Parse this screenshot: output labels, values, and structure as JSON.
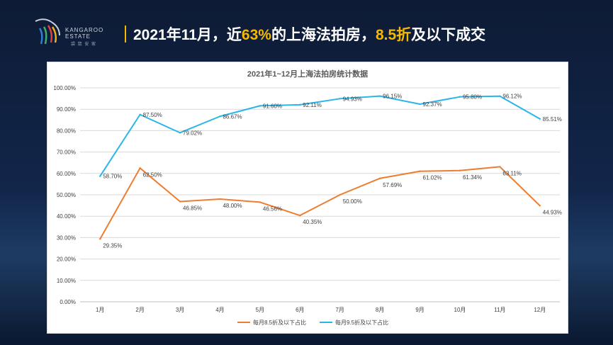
{
  "logo": {
    "brand_en_1": "KANGAROO",
    "brand_en_2": "ESTATE",
    "brand_cn": "袋 鼠 安 家"
  },
  "headline": {
    "part1": "2021年11月，近",
    "hl1": "63%",
    "part2": "的上海法拍房，",
    "hl2": "8.5折",
    "part3": "及以下成交"
  },
  "colors": {
    "accent": "#f5b800",
    "series1": "#ed7d31",
    "series2": "#29b6e8"
  },
  "chart_data": {
    "type": "line",
    "title": "2021年1~12月上海法拍房统计数据",
    "categories": [
      "1月",
      "2月",
      "3月",
      "4月",
      "5月",
      "6月",
      "7月",
      "8月",
      "9月",
      "10月",
      "11月",
      "12月"
    ],
    "ylim": [
      0,
      100
    ],
    "yticks": [
      "0.00%",
      "10.00%",
      "20.00%",
      "30.00%",
      "40.00%",
      "50.00%",
      "60.00%",
      "70.00%",
      "80.00%",
      "90.00%",
      "100.00%"
    ],
    "grid": true,
    "legend_position": "bottom",
    "series": [
      {
        "name": "每月8.5折及以下占比",
        "values": [
          29.35,
          62.5,
          46.85,
          48.0,
          46.56,
          40.35,
          50.0,
          57.69,
          61.02,
          61.34,
          63.11,
          44.93
        ],
        "labels": [
          "29.35%",
          "62.50%",
          "46.85%",
          "48.00%",
          "46.56%",
          "40.35%",
          "50.00%",
          "57.69%",
          "61.02%",
          "61.34%",
          "63.11%",
          "44.93%"
        ]
      },
      {
        "name": "每月9.5折及以下占比",
        "values": [
          58.7,
          87.5,
          79.02,
          86.67,
          91.6,
          92.11,
          94.93,
          96.15,
          92.37,
          95.8,
          96.12,
          85.51
        ],
        "labels": [
          "58.70%",
          "87.50%",
          "79.02%",
          "86.67%",
          "91.60%",
          "92.11%",
          "94.93%",
          "96.15%",
          "92.37%",
          "95.80%",
          "96.12%",
          "85.51%"
        ]
      }
    ]
  }
}
